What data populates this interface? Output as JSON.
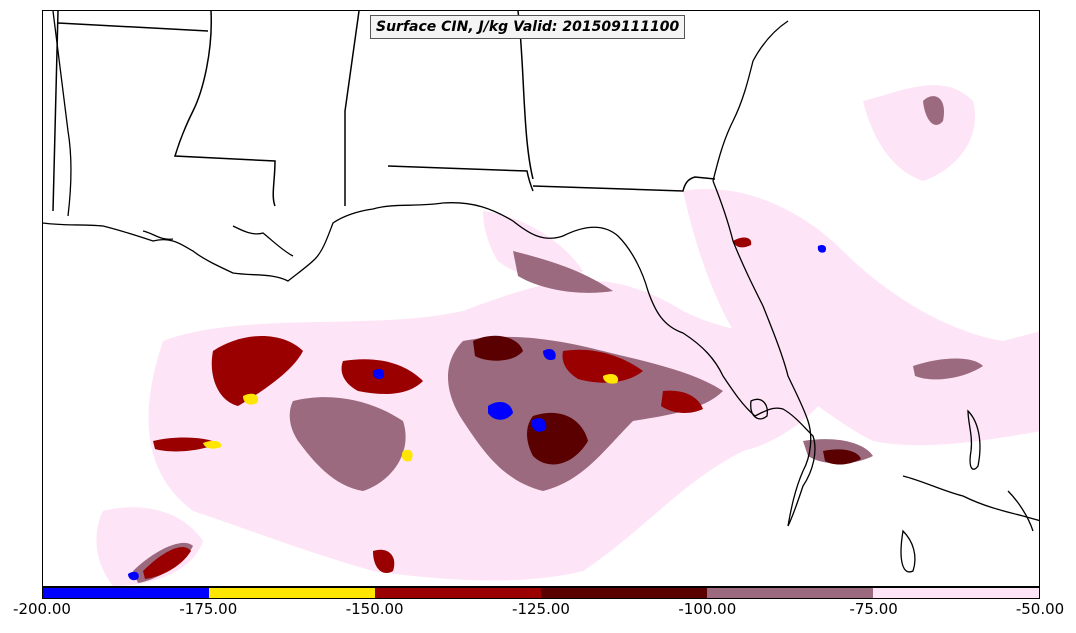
{
  "title": "Surface CIN, J/kg Valid: 201509111100",
  "colorbar": {
    "segments": [
      {
        "from": -200,
        "to": -175,
        "color": "#0000ff"
      },
      {
        "from": -175,
        "to": -150,
        "color": "#ffe600"
      },
      {
        "from": -150,
        "to": -125,
        "color": "#9a0000"
      },
      {
        "from": -125,
        "to": -100,
        "color": "#5a0000"
      },
      {
        "from": -100,
        "to": -75,
        "color": "#9b6a7f"
      },
      {
        "from": -75,
        "to": -50,
        "color": "#fde4f6"
      }
    ],
    "tick_labels": [
      "-200.00",
      "-175.00",
      "-150.00",
      "-125.00",
      "-100.00",
      "-75.00",
      "-50.00"
    ]
  }
}
